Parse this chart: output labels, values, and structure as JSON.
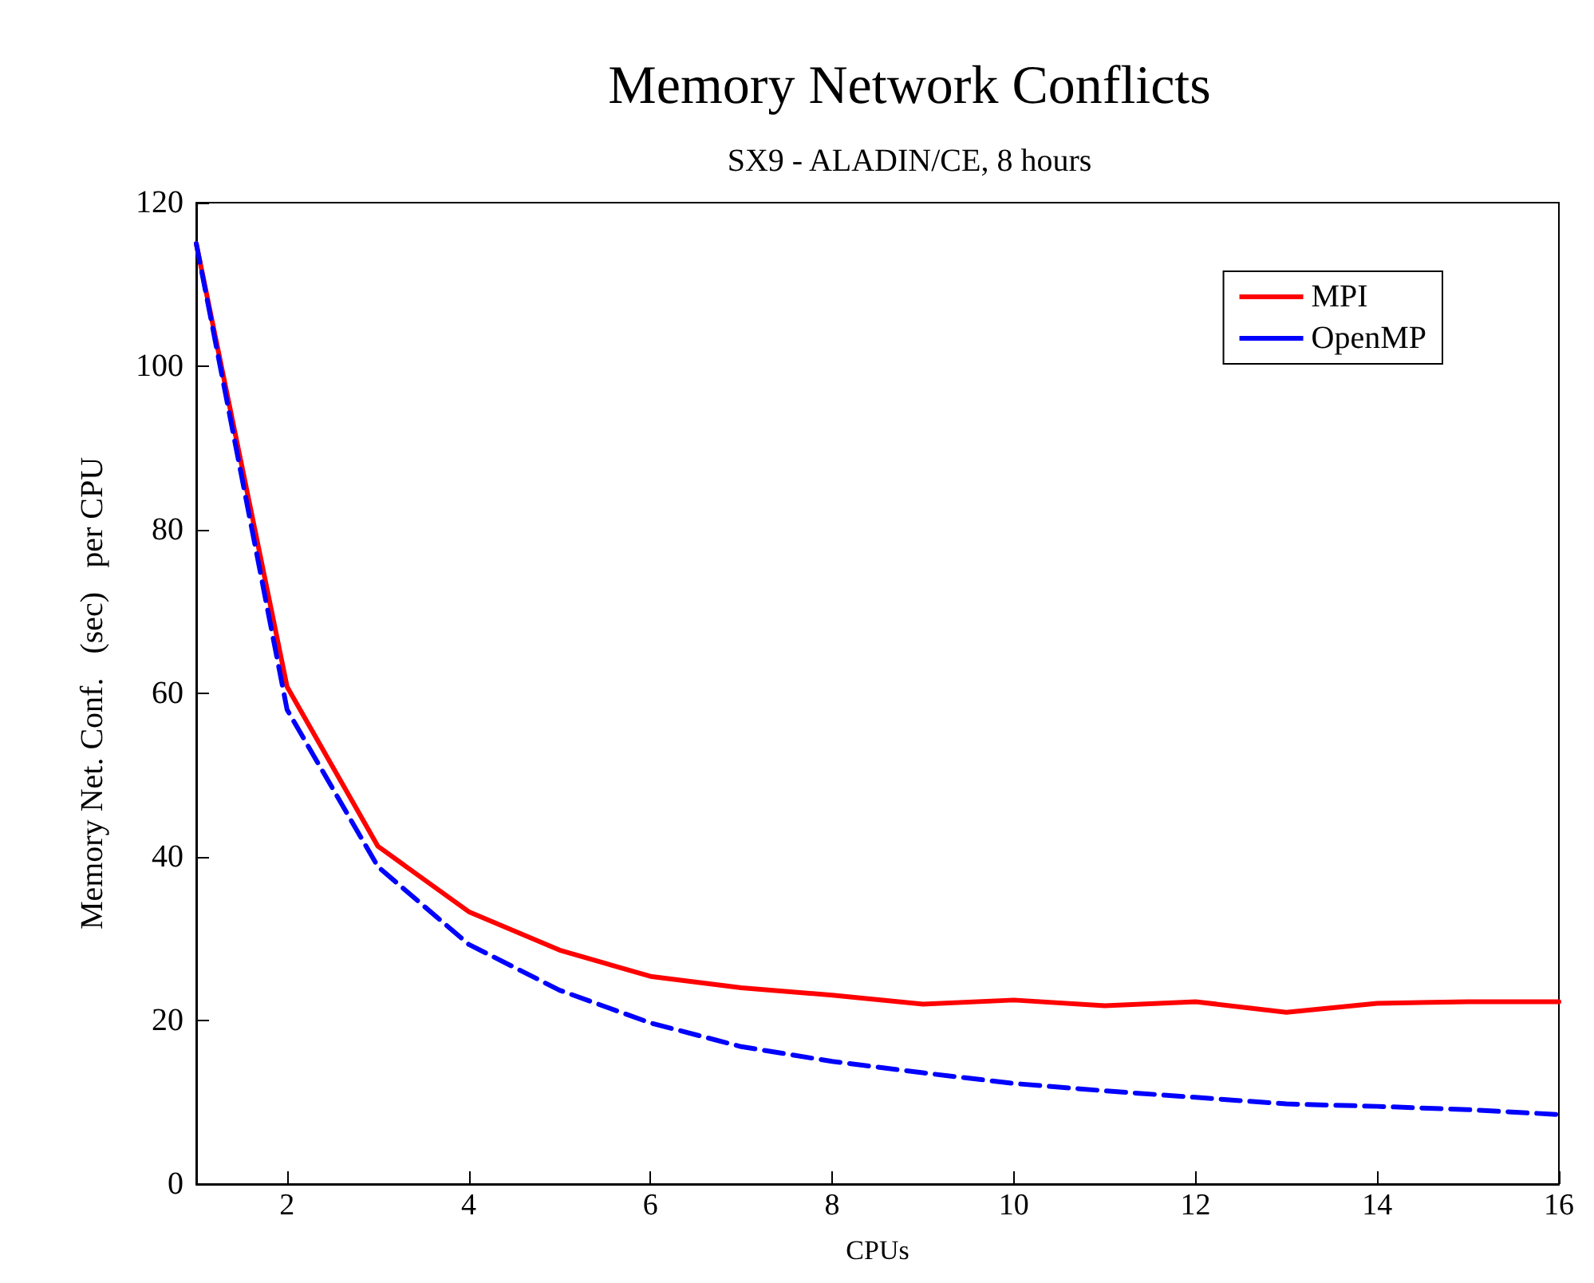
{
  "chart_data": {
    "type": "line",
    "title": "Memory Network Conflicts",
    "subtitle": "SX9 - ALADIN/CE, 8 hours",
    "xlabel": "CPUs",
    "ylabel": "Memory Net. Conf.   (sec)   per CPU",
    "x": [
      1,
      2,
      3,
      4,
      5,
      6,
      7,
      8,
      9,
      10,
      11,
      12,
      13,
      14,
      15,
      16
    ],
    "series": [
      {
        "name": "MPI",
        "color": "#ff0000",
        "line_style": "solid",
        "values": [
          115,
          60.8,
          41.3,
          33.3,
          28.6,
          25.4,
          24,
          23.1,
          22,
          22.5,
          21.8,
          22.3,
          21,
          22.1,
          22.3,
          22.3
        ]
      },
      {
        "name": "OpenMP",
        "color": "#0000ff",
        "line_style": "dashed",
        "values": [
          115,
          58,
          38.8,
          29.3,
          23.7,
          19.7,
          16.8,
          15,
          13.6,
          12.3,
          11.4,
          10.6,
          9.8,
          9.5,
          9.1,
          8.5
        ]
      }
    ],
    "xlim": [
      1,
      16
    ],
    "xticks": [
      2,
      4,
      6,
      8,
      10,
      12,
      14,
      16
    ],
    "ylim": [
      0,
      120
    ],
    "yticks": [
      0,
      20,
      40,
      60,
      80,
      100,
      120
    ],
    "grid": false,
    "legend": "top right",
    "marker": "none"
  }
}
